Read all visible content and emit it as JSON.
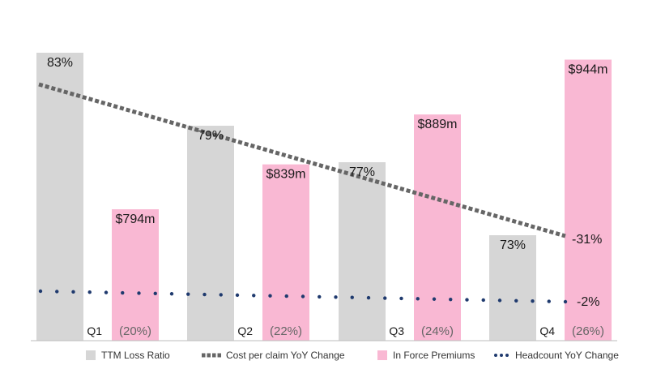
{
  "chart_data": {
    "type": "bar",
    "categories": [
      "Q1",
      "Q2",
      "Q3",
      "Q4"
    ],
    "series": [
      {
        "name": "TTM Loss Ratio",
        "kind": "bar",
        "color": "#d6d6d6",
        "values": [
          83,
          79,
          77,
          73
        ],
        "labels": [
          "83%",
          "79%",
          "77%",
          "73%"
        ]
      },
      {
        "name": "In Force Premiums",
        "kind": "bar",
        "color": "#f9b8d3",
        "values": [
          794,
          839,
          889,
          944
        ],
        "labels": [
          "$794m",
          "$839m",
          "$889m",
          "$944m"
        ],
        "sub_labels": [
          "(20%)",
          "(22%)",
          "(24%)",
          "(26%)"
        ]
      },
      {
        "name": "Cost per claim YoY Change",
        "kind": "line",
        "style": "dashed",
        "color": "#666666",
        "end_label": "-31%"
      },
      {
        "name": "Headcount YoY Change",
        "kind": "line",
        "style": "dotted",
        "color": "#1f3a6e",
        "end_label": "-2%"
      }
    ],
    "legend_position": "bottom",
    "grid": false
  }
}
